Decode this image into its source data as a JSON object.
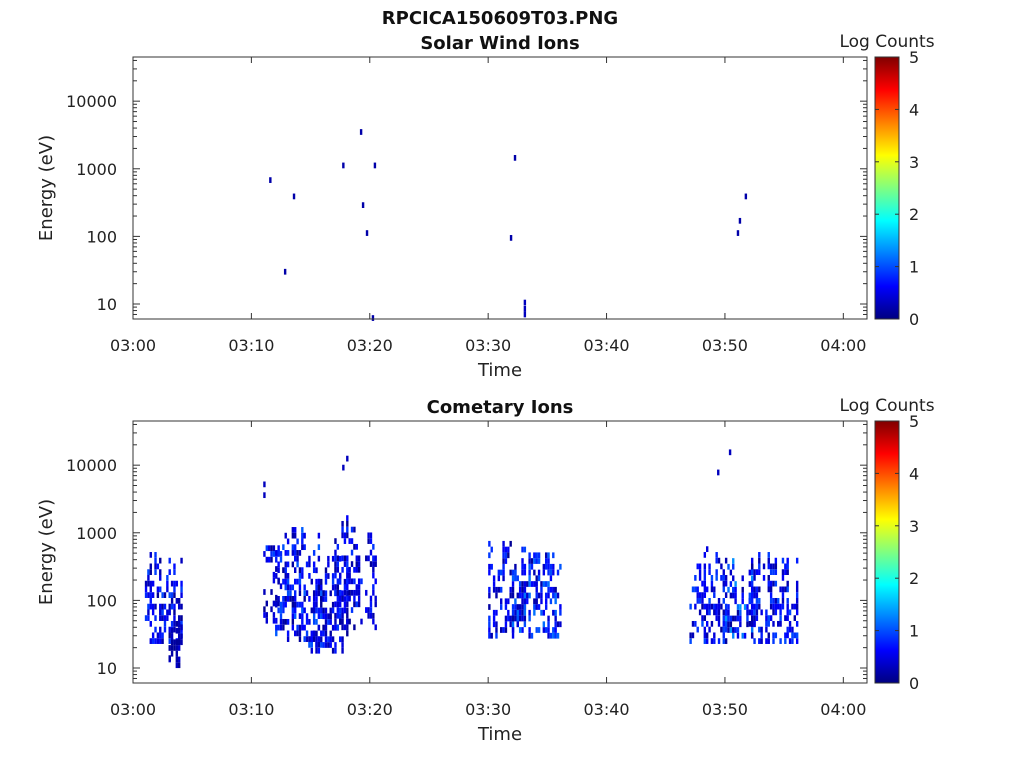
{
  "figure": {
    "title": "RPCICA150609T03.PNG"
  },
  "colormap": [
    "#000080",
    "#0000ff",
    "#0080ff",
    "#00ffff",
    "#80ff80",
    "#ffff00",
    "#ff8000",
    "#ff0000",
    "#800000"
  ],
  "chart_data": [
    {
      "type": "heatmap",
      "title": "Solar Wind Ions",
      "xlabel": "Time",
      "ylabel": "Energy (eV)",
      "xlim": [
        "03:00",
        "04:02"
      ],
      "ylim": [
        6,
        45000
      ],
      "yscale": "log",
      "xticks": [
        "03:00",
        "03:10",
        "03:20",
        "03:30",
        "03:40",
        "03:50",
        "04:00"
      ],
      "yticks": [
        10,
        100,
        1000,
        10000
      ],
      "ytick_labels": [
        "10",
        "100",
        "1000",
        "10000"
      ],
      "colorbar": {
        "label": "Log Counts",
        "range": [
          0,
          5
        ],
        "ticks": [
          "0",
          "1",
          "2",
          "3",
          "4",
          "5"
        ]
      },
      "grid": false,
      "cells": [
        {
          "t": "03:11:30",
          "e": 680,
          "v": 0.2
        },
        {
          "t": "03:12:45",
          "e": 30,
          "v": 0.2
        },
        {
          "t": "03:13:30",
          "e": 390,
          "v": 0.2
        },
        {
          "t": "03:17:40",
          "e": 1120,
          "v": 0.2
        },
        {
          "t": "03:19:10",
          "e": 3500,
          "v": 0.2
        },
        {
          "t": "03:19:20",
          "e": 290,
          "v": 0.2
        },
        {
          "t": "03:19:40",
          "e": 112,
          "v": 0.2
        },
        {
          "t": "03:20:20",
          "e": 1120,
          "v": 0.2
        },
        {
          "t": "03:20:10",
          "e": 6.2,
          "v": 0.2
        },
        {
          "t": "03:31:50",
          "e": 95,
          "v": 0.2
        },
        {
          "t": "03:32:10",
          "e": 1450,
          "v": 0.2
        },
        {
          "t": "03:33:00",
          "e": 7,
          "v": 0.3
        },
        {
          "t": "03:33:00",
          "e": 8.5,
          "v": 0.3
        },
        {
          "t": "03:33:00",
          "e": 10.5,
          "v": 0.3
        },
        {
          "t": "03:51:00",
          "e": 112,
          "v": 0.2
        },
        {
          "t": "03:51:10",
          "e": 170,
          "v": 0.2
        },
        {
          "t": "03:51:40",
          "e": 390,
          "v": 0.2
        }
      ]
    },
    {
      "type": "heatmap",
      "title": "Cometary Ions",
      "xlabel": "Time",
      "ylabel": "Energy (eV)",
      "xlim": [
        "03:00",
        "04:02"
      ],
      "ylim": [
        6,
        45000
      ],
      "yscale": "log",
      "xticks": [
        "03:00",
        "03:10",
        "03:20",
        "03:30",
        "03:40",
        "03:50",
        "04:00"
      ],
      "yticks": [
        10,
        100,
        1000,
        10000
      ],
      "ytick_labels": [
        "10",
        "100",
        "1000",
        "10000"
      ],
      "colorbar": {
        "label": "Log Counts",
        "range": [
          0,
          5
        ],
        "ticks": [
          "0",
          "1",
          "2",
          "3",
          "4",
          "5"
        ]
      },
      "grid": false,
      "bursts": [
        {
          "start": "03:01:00",
          "end": "03:04:00",
          "emin": 25,
          "emax": 550,
          "vmax": 0.9,
          "density": 0.55
        },
        {
          "start": "03:03:00",
          "end": "03:04:00",
          "emin": 11,
          "emax": 45,
          "vmax": 0.3,
          "density": 0.5
        },
        {
          "start": "03:11:00",
          "end": "03:12:30",
          "emin": 400,
          "emax": 700,
          "vmax": 0.9,
          "density": 0.6
        },
        {
          "start": "03:11:00",
          "end": "03:12:30",
          "emin": 50,
          "emax": 350,
          "vmax": 0.5,
          "density": 0.3
        },
        {
          "start": "03:12:00",
          "end": "03:16:00",
          "emin": 22,
          "emax": 1300,
          "vmax": 1.0,
          "density": 0.45
        },
        {
          "start": "03:15:00",
          "end": "03:18:00",
          "emin": 18,
          "emax": 500,
          "vmax": 0.8,
          "density": 0.5
        },
        {
          "start": "03:17:00",
          "end": "03:20:30",
          "emin": 40,
          "emax": 1700,
          "vmax": 0.8,
          "density": 0.45
        },
        {
          "start": "03:30:00",
          "end": "03:33:00",
          "emin": 30,
          "emax": 800,
          "vmax": 0.9,
          "density": 0.4
        },
        {
          "start": "03:32:00",
          "end": "03:36:00",
          "emin": 30,
          "emax": 500,
          "vmax": 1.1,
          "density": 0.5
        },
        {
          "start": "03:47:00",
          "end": "03:50:00",
          "emin": 25,
          "emax": 650,
          "vmax": 0.9,
          "density": 0.45
        },
        {
          "start": "03:50:00",
          "end": "03:52:30",
          "emin": 30,
          "emax": 500,
          "vmax": 1.3,
          "density": 0.55
        },
        {
          "start": "03:52:00",
          "end": "03:56:00",
          "emin": 25,
          "emax": 500,
          "vmax": 0.9,
          "density": 0.5
        }
      ],
      "cells": [
        {
          "t": "03:11:00",
          "e": 5200,
          "v": 0.3
        },
        {
          "t": "03:11:00",
          "e": 3600,
          "v": 0.3
        },
        {
          "t": "03:17:40",
          "e": 9200,
          "v": 0.3
        },
        {
          "t": "03:18:00",
          "e": 12500,
          "v": 0.3
        },
        {
          "t": "03:49:20",
          "e": 7800,
          "v": 0.3
        },
        {
          "t": "03:50:20",
          "e": 15500,
          "v": 0.3
        },
        {
          "t": "03:04:00",
          "e": 40,
          "v": 0.3
        },
        {
          "t": "03:03:00",
          "e": 14,
          "v": 0.2
        }
      ]
    }
  ]
}
